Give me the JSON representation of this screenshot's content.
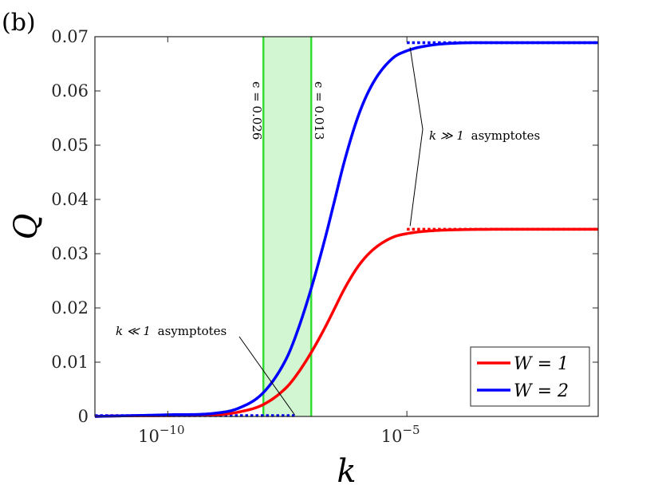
{
  "panel_label": "(b)",
  "chart_data": {
    "type": "line",
    "xscale": "log",
    "xlim": [
      3e-12,
      0.1
    ],
    "ylim": [
      0,
      0.07
    ],
    "xlabel": "k",
    "ylabel": "Q",
    "xticks": [
      {
        "value": 1e-10,
        "base": "10",
        "exp": "−10"
      },
      {
        "value": 1e-05,
        "base": "10",
        "exp": "−5"
      }
    ],
    "yticks": [
      {
        "value": 0,
        "label": "0"
      },
      {
        "value": 0.01,
        "label": "0.01"
      },
      {
        "value": 0.02,
        "label": "0.02"
      },
      {
        "value": 0.03,
        "label": "0.03"
      },
      {
        "value": 0.04,
        "label": "0.04"
      },
      {
        "value": 0.05,
        "label": "0.05"
      },
      {
        "value": 0.06,
        "label": "0.06"
      },
      {
        "value": 0.07,
        "label": "0.07"
      }
    ],
    "series": [
      {
        "name": "W = 1",
        "color": "#ff0000",
        "x": [
          3e-12,
          1e-11,
          1e-10,
          1e-09,
          3e-09,
          1e-08,
          3e-08,
          5e-08,
          1e-07,
          2e-07,
          3e-07,
          5e-07,
          1e-06,
          2e-06,
          5e-06,
          1e-05,
          3e-05,
          0.0001,
          0.001,
          0.01,
          0.1
        ],
        "y": [
          0,
          0.0001,
          0.00015,
          0.0003,
          0.0008,
          0.0022,
          0.0053,
          0.0077,
          0.0118,
          0.0166,
          0.0197,
          0.0236,
          0.0279,
          0.0308,
          0.033,
          0.0337,
          0.0342,
          0.0344,
          0.0345,
          0.0345,
          0.0345
        ]
      },
      {
        "name": "W = 2",
        "color": "#0000ff",
        "x": [
          3e-12,
          1e-11,
          1e-10,
          1e-09,
          3e-09,
          1e-08,
          3e-08,
          5e-08,
          1e-07,
          2e-07,
          3e-07,
          5e-07,
          1e-06,
          2e-06,
          5e-06,
          1e-05,
          3e-05,
          0.0001,
          0.001,
          0.01,
          0.1
        ],
        "y": [
          0,
          0.0001,
          0.0003,
          0.0006,
          0.0015,
          0.0044,
          0.0106,
          0.0154,
          0.0236,
          0.0332,
          0.0394,
          0.0472,
          0.0558,
          0.0616,
          0.066,
          0.0674,
          0.0684,
          0.0688,
          0.0689,
          0.0689,
          0.0689
        ]
      }
    ],
    "asymptotes": [
      {
        "color": "#ff0000",
        "value": 0.0345,
        "from": 1e-05,
        "to": 0.1
      },
      {
        "color": "#0000ff",
        "value": 0.0689,
        "from": 1e-05,
        "to": 0.1
      },
      {
        "color": "#0000ff",
        "value": 0,
        "from": 3e-12,
        "to": 5e-08
      }
    ],
    "band": {
      "x_from": 1e-08,
      "x_to": 1e-07,
      "fill": "#ccf5cc",
      "edge": "#33dd33",
      "left_label": "ϵ = 0.026",
      "right_label": "ϵ = 0.013"
    },
    "annotations": {
      "large_k": {
        "prefix": "k ≫ 1",
        "text": "asymptotes"
      },
      "small_k": {
        "prefix": "k ≪ 1",
        "text": "asymptotes"
      }
    },
    "legend": {
      "placement": "bottom-right",
      "items": [
        {
          "label": "W = 1",
          "color": "#ff0000"
        },
        {
          "label": "W = 2",
          "color": "#0000ff"
        }
      ]
    }
  }
}
